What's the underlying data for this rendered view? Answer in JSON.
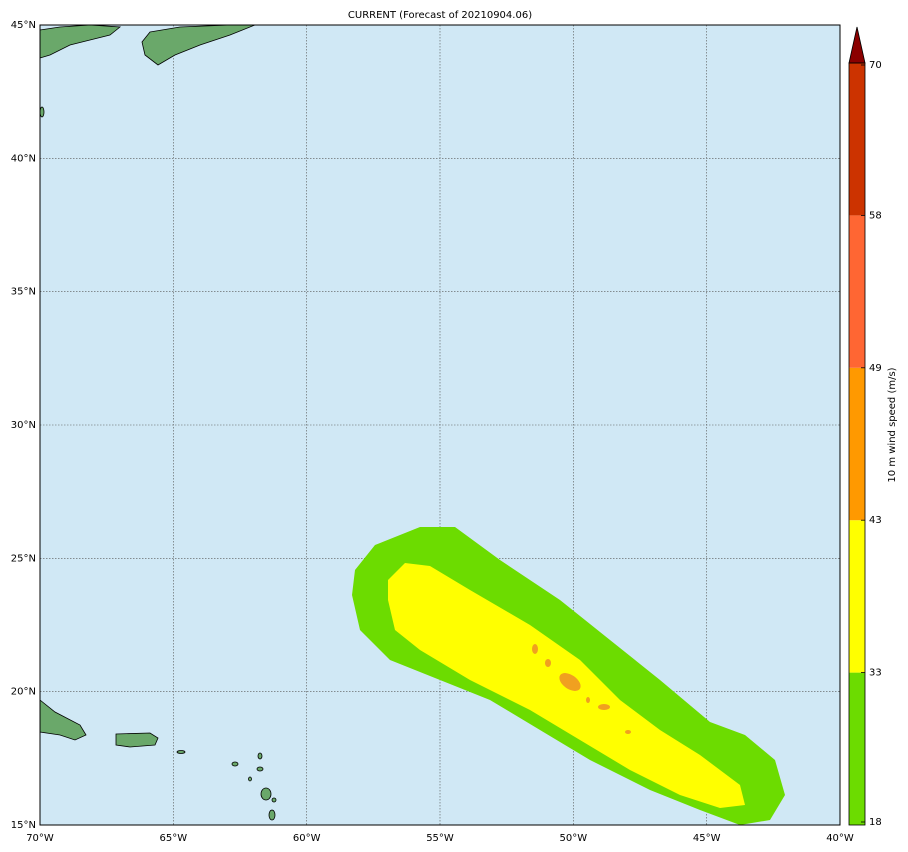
{
  "title": "CURRENT (Forecast of 20210904.06)",
  "map": {
    "lon_ticks": [
      "70°W",
      "65°W",
      "60°W",
      "55°W",
      "50°W",
      "45°W",
      "40°W"
    ],
    "lat_ticks": [
      "45°N",
      "40°N",
      "35°N",
      "30°N",
      "25°N",
      "20°N",
      "15°N"
    ]
  },
  "colorbar": {
    "label": "10 m wind speed (m/s)",
    "ticks": [
      18,
      33,
      43,
      49,
      58,
      70
    ],
    "colors": [
      "#6cdc00",
      "#ffff00",
      "#ff9900",
      "#ff6633",
      "#cc3300"
    ],
    "extend_color": "#8b0000"
  }
}
